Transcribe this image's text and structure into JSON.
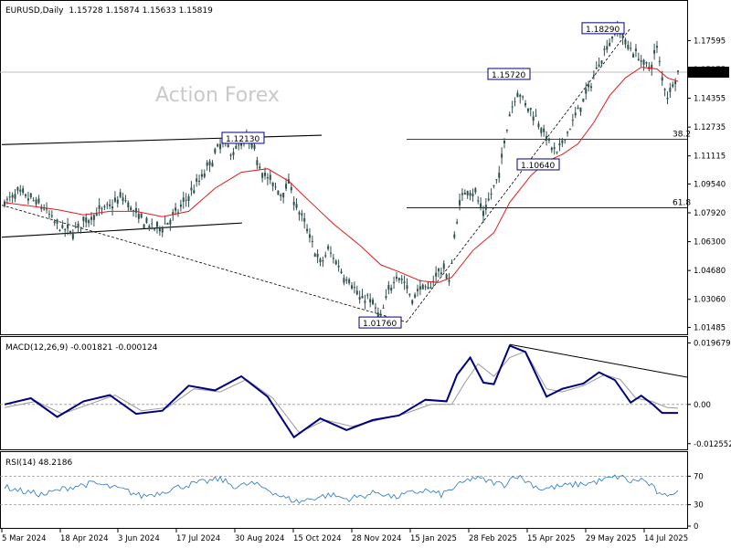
{
  "main": {
    "header": {
      "symbol": "EURUSD,Daily",
      "ohlc": "1.15728 1.15874 1.15633 1.15819"
    },
    "watermark": "Action Forex",
    "last_price": "1.15819",
    "chart_data": {
      "type": "candlestick",
      "y_ticks": [
        "1.17595",
        "1.15975",
        "1.14355",
        "1.12735",
        "1.11115",
        "1.09540",
        "1.07920",
        "1.06300",
        "1.04680",
        "1.03060",
        "1.01485"
      ],
      "ylim": [
        1.012,
        1.1895
      ],
      "x_ticks": [
        "5 Mar 2024",
        "18 Apr 2024",
        "3 Jun 2024",
        "17 Jul 2024",
        "30 Aug 2024",
        "15 Oct 2024",
        "28 Nov 2024",
        "15 Jan 2025",
        "28 Feb 2025",
        "15 Apr 2025",
        "29 May 2025",
        "14 Jul 2025"
      ],
      "price_path": [
        [
          0,
          1.085
        ],
        [
          5,
          1.09
        ],
        [
          10,
          1.087
        ],
        [
          15,
          1.082
        ],
        [
          20,
          1.072
        ],
        [
          25,
          1.068
        ],
        [
          30,
          1.074
        ],
        [
          35,
          1.079
        ],
        [
          40,
          1.083
        ],
        [
          45,
          1.088
        ],
        [
          50,
          1.078
        ],
        [
          55,
          1.072
        ],
        [
          58,
          1.07
        ],
        [
          62,
          1.074
        ],
        [
          66,
          1.08
        ],
        [
          70,
          1.089
        ],
        [
          74,
          1.097
        ],
        [
          77,
          1.104
        ],
        [
          80,
          1.112
        ],
        [
          83,
          1.12
        ],
        [
          86,
          1.113
        ],
        [
          90,
          1.118
        ],
        [
          93,
          1.12
        ],
        [
          96,
          1.11
        ],
        [
          99,
          1.1
        ],
        [
          102,
          1.095
        ],
        [
          105,
          1.09
        ],
        [
          108,
          1.096
        ],
        [
          111,
          1.083
        ],
        [
          114,
          1.073
        ],
        [
          117,
          1.062
        ],
        [
          120,
          1.05
        ],
        [
          123,
          1.058
        ],
        [
          126,
          1.052
        ],
        [
          129,
          1.044
        ],
        [
          132,
          1.04
        ],
        [
          135,
          1.03
        ],
        [
          138,
          1.032
        ],
        [
          141,
          1.025
        ],
        [
          143,
          1.02
        ],
        [
          146,
          1.035
        ],
        [
          149,
          1.045
        ],
        [
          152,
          1.04
        ],
        [
          155,
          1.03
        ],
        [
          158,
          1.038
        ],
        [
          161,
          1.035
        ],
        [
          164,
          1.045
        ],
        [
          167,
          1.048
        ],
        [
          169,
          1.04
        ],
        [
          171,
          1.065
        ],
        [
          173,
          1.085
        ],
        [
          176,
          1.093
        ],
        [
          179,
          1.09
        ],
        [
          182,
          1.078
        ],
        [
          185,
          1.09
        ],
        [
          188,
          1.1
        ],
        [
          190,
          1.12
        ],
        [
          192,
          1.135
        ],
        [
          195,
          1.148
        ],
        [
          198,
          1.14
        ],
        [
          201,
          1.135
        ],
        [
          204,
          1.128
        ],
        [
          207,
          1.118
        ],
        [
          210,
          1.112
        ],
        [
          213,
          1.122
        ],
        [
          216,
          1.13
        ],
        [
          219,
          1.14
        ],
        [
          222,
          1.148
        ],
        [
          225,
          1.16
        ],
        [
          228,
          1.17
        ],
        [
          231,
          1.178
        ],
        [
          233,
          1.183
        ],
        [
          236,
          1.175
        ],
        [
          239,
          1.17
        ],
        [
          242,
          1.165
        ],
        [
          245,
          1.16
        ],
        [
          248,
          1.172
        ],
        [
          250,
          1.155
        ],
        [
          252,
          1.145
        ],
        [
          254,
          1.152
        ],
        [
          256,
          1.158
        ]
      ],
      "ma_path": [
        [
          0,
          1.085
        ],
        [
          10,
          1.083
        ],
        [
          20,
          1.081
        ],
        [
          30,
          1.078
        ],
        [
          40,
          1.08
        ],
        [
          50,
          1.08
        ],
        [
          60,
          1.077
        ],
        [
          70,
          1.08
        ],
        [
          80,
          1.093
        ],
        [
          90,
          1.102
        ],
        [
          100,
          1.104
        ],
        [
          108,
          1.097
        ],
        [
          115,
          1.087
        ],
        [
          125,
          1.073
        ],
        [
          135,
          1.061
        ],
        [
          143,
          1.05
        ],
        [
          150,
          1.046
        ],
        [
          158,
          1.041
        ],
        [
          165,
          1.04
        ],
        [
          170,
          1.043
        ],
        [
          178,
          1.058
        ],
        [
          186,
          1.068
        ],
        [
          192,
          1.085
        ],
        [
          200,
          1.1
        ],
        [
          206,
          1.108
        ],
        [
          212,
          1.112
        ],
        [
          218,
          1.118
        ],
        [
          224,
          1.13
        ],
        [
          230,
          1.145
        ],
        [
          236,
          1.155
        ],
        [
          242,
          1.161
        ],
        [
          248,
          1.16
        ],
        [
          252,
          1.155
        ],
        [
          256,
          1.153
        ]
      ],
      "n_candles": 257,
      "annotations": [
        "1.12130",
        "1.18290",
        "1.15720",
        "1.10640",
        "1.01760"
      ],
      "fib_levels": [
        "38.2",
        "61.8"
      ]
    }
  },
  "macd": {
    "header": "MACD(12,26,9) -0.001821 -0.000124",
    "y_ticks": [
      "0.019679",
      "0.00",
      "-0.012552"
    ],
    "ylim": [
      -0.0135,
      0.0207
    ],
    "macd_path": [
      [
        0,
        0.0
      ],
      [
        10,
        0.002
      ],
      [
        20,
        -0.004
      ],
      [
        30,
        0.001
      ],
      [
        40,
        0.003
      ],
      [
        50,
        -0.003
      ],
      [
        60,
        -0.002
      ],
      [
        70,
        0.006
      ],
      [
        80,
        0.0045
      ],
      [
        90,
        0.009
      ],
      [
        100,
        0.0025
      ],
      [
        110,
        -0.0105
      ],
      [
        120,
        -0.0045
      ],
      [
        130,
        -0.0082
      ],
      [
        140,
        -0.005
      ],
      [
        150,
        -0.0035
      ],
      [
        160,
        0.0015
      ],
      [
        168,
        0.001
      ],
      [
        172,
        0.0095
      ],
      [
        177,
        0.015
      ],
      [
        182,
        0.007
      ],
      [
        186,
        0.0065
      ],
      [
        192,
        0.0188
      ],
      [
        198,
        0.0168
      ],
      [
        206,
        0.0025
      ],
      [
        212,
        0.005
      ],
      [
        220,
        0.0067
      ],
      [
        226,
        0.0103
      ],
      [
        232,
        0.0078
      ],
      [
        238,
        0.0006
      ],
      [
        242,
        0.0028
      ],
      [
        246,
        0.0003
      ],
      [
        250,
        -0.0027
      ],
      [
        256,
        -0.0027
      ]
    ],
    "signal_path": [
      [
        0,
        -0.001
      ],
      [
        12,
        0.001
      ],
      [
        22,
        -0.003
      ],
      [
        32,
        0.0
      ],
      [
        42,
        0.003
      ],
      [
        52,
        -0.002
      ],
      [
        62,
        -0.001
      ],
      [
        72,
        0.005
      ],
      [
        82,
        0.004
      ],
      [
        92,
        0.008
      ],
      [
        102,
        0.002
      ],
      [
        112,
        -0.009
      ],
      [
        122,
        -0.005
      ],
      [
        132,
        -0.007
      ],
      [
        142,
        -0.005
      ],
      [
        152,
        -0.003
      ],
      [
        162,
        0.0
      ],
      [
        170,
        0.0
      ],
      [
        175,
        0.007
      ],
      [
        180,
        0.013
      ],
      [
        186,
        0.009
      ],
      [
        192,
        0.015
      ],
      [
        198,
        0.017
      ],
      [
        206,
        0.005
      ],
      [
        212,
        0.004
      ],
      [
        220,
        0.006
      ],
      [
        228,
        0.0095
      ],
      [
        234,
        0.008
      ],
      [
        240,
        0.002
      ],
      [
        246,
        0.001
      ],
      [
        252,
        -0.001
      ],
      [
        256,
        -0.0012
      ]
    ]
  },
  "rsi": {
    "header": "RSI(14) 48.2186",
    "y_ticks": [
      "70",
      "30",
      "0"
    ],
    "ylim": [
      0,
      100
    ],
    "rsi_path": [
      [
        0,
        55
      ],
      [
        8,
        48
      ],
      [
        15,
        44
      ],
      [
        22,
        52
      ],
      [
        28,
        57
      ],
      [
        34,
        60
      ],
      [
        40,
        55
      ],
      [
        46,
        50
      ],
      [
        52,
        42
      ],
      [
        58,
        46
      ],
      [
        64,
        53
      ],
      [
        70,
        58
      ],
      [
        76,
        62
      ],
      [
        82,
        66
      ],
      [
        88,
        55
      ],
      [
        94,
        60
      ],
      [
        100,
        52
      ],
      [
        106,
        40
      ],
      [
        112,
        34
      ],
      [
        118,
        40
      ],
      [
        124,
        44
      ],
      [
        130,
        38
      ],
      [
        136,
        42
      ],
      [
        142,
        48
      ],
      [
        148,
        40
      ],
      [
        154,
        46
      ],
      [
        160,
        50
      ],
      [
        166,
        44
      ],
      [
        172,
        56
      ],
      [
        178,
        68
      ],
      [
        184,
        63
      ],
      [
        190,
        58
      ],
      [
        194,
        72
      ],
      [
        198,
        64
      ],
      [
        204,
        52
      ],
      [
        210,
        55
      ],
      [
        216,
        58
      ],
      [
        222,
        60
      ],
      [
        228,
        65
      ],
      [
        234,
        70
      ],
      [
        238,
        62
      ],
      [
        242,
        66
      ],
      [
        246,
        56
      ],
      [
        250,
        40
      ],
      [
        253,
        47
      ],
      [
        256,
        48
      ]
    ]
  },
  "colors": {
    "candle": "#2f4f4f",
    "ma": "#e41a1c",
    "macd": "#000080",
    "signal": "#9a9a9a",
    "rsi": "#2277cc"
  }
}
